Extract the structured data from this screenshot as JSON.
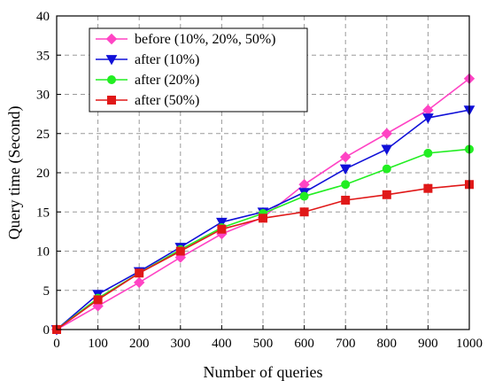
{
  "chart_data": {
    "type": "line",
    "xlabel": "Number of queries",
    "ylabel": "Query time (Second)",
    "x": [
      0,
      100,
      200,
      300,
      400,
      500,
      600,
      700,
      800,
      900,
      1000
    ],
    "xticks": [
      "0",
      "100",
      "200",
      "300",
      "400",
      "500",
      "600",
      "700",
      "800",
      "900",
      "1000"
    ],
    "yticks": [
      "0",
      "5",
      "10",
      "15",
      "20",
      "25",
      "30",
      "35",
      "40"
    ],
    "xlim": [
      0,
      1000
    ],
    "ylim": [
      0,
      40
    ],
    "grid": true,
    "legend_position": "top-left",
    "series": [
      {
        "name": "before (10%, 20%, 50%)",
        "color": "#ff44c4",
        "marker": "diamond",
        "values": [
          0,
          3,
          6,
          9.2,
          12.2,
          14.3,
          18.5,
          22,
          25,
          28,
          32
        ]
      },
      {
        "name": "after (10%)",
        "color": "#1010d8",
        "marker": "triangle-down",
        "values": [
          0,
          4.5,
          7.4,
          10.5,
          13.7,
          15,
          17.5,
          20.5,
          23,
          27,
          28
        ]
      },
      {
        "name": "after (20%)",
        "color": "#22ee22",
        "marker": "circle",
        "values": [
          0,
          4,
          7.2,
          10.2,
          13,
          14.8,
          17,
          18.5,
          20.5,
          22.5,
          23
        ]
      },
      {
        "name": "after (50%)",
        "color": "#e01818",
        "marker": "square",
        "values": [
          0,
          3.8,
          7.2,
          10,
          12.8,
          14.2,
          15,
          16.5,
          17.2,
          18,
          18.5
        ]
      }
    ]
  }
}
